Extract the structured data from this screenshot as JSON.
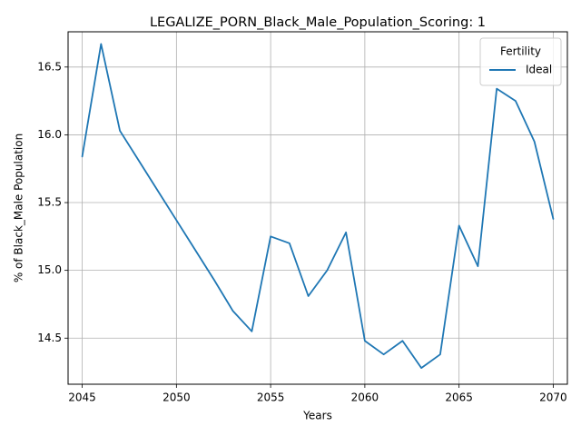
{
  "chart_data": {
    "type": "line",
    "title": "LEGALIZE_PORN_Black_Male_Population_Scoring: 1",
    "xlabel": "Years",
    "ylabel": "% of Black_Male Population",
    "xlim": [
      2044.25,
      2070.75
    ],
    "ylim": [
      14.16,
      16.76
    ],
    "xticks": [
      2045,
      2050,
      2055,
      2060,
      2065,
      2070
    ],
    "yticks": [
      14.5,
      15.0,
      15.5,
      16.0,
      16.5
    ],
    "ytick_labels": [
      "14.5",
      "15.0",
      "15.5",
      "16.0",
      "16.5"
    ],
    "grid": true,
    "legend": {
      "title": "Fertility",
      "placement": "top-right"
    },
    "series": [
      {
        "name": "Ideal",
        "color": "#1f77b4",
        "x": [
          2045,
          2046,
          2047,
          2048,
          2049,
          2050,
          2051,
          2052,
          2053,
          2054,
          2055,
          2056,
          2057,
          2058,
          2059,
          2060,
          2061,
          2062,
          2063,
          2064,
          2065,
          2066,
          2067,
          2068,
          2069,
          2070
        ],
        "y": [
          15.84,
          16.67,
          16.03,
          15.81,
          15.59,
          15.37,
          15.15,
          14.93,
          14.7,
          14.55,
          15.25,
          15.2,
          14.81,
          15.0,
          15.28,
          14.48,
          14.38,
          14.48,
          14.28,
          14.38,
          15.33,
          15.03,
          16.34,
          16.25,
          15.95,
          15.38
        ]
      }
    ]
  }
}
